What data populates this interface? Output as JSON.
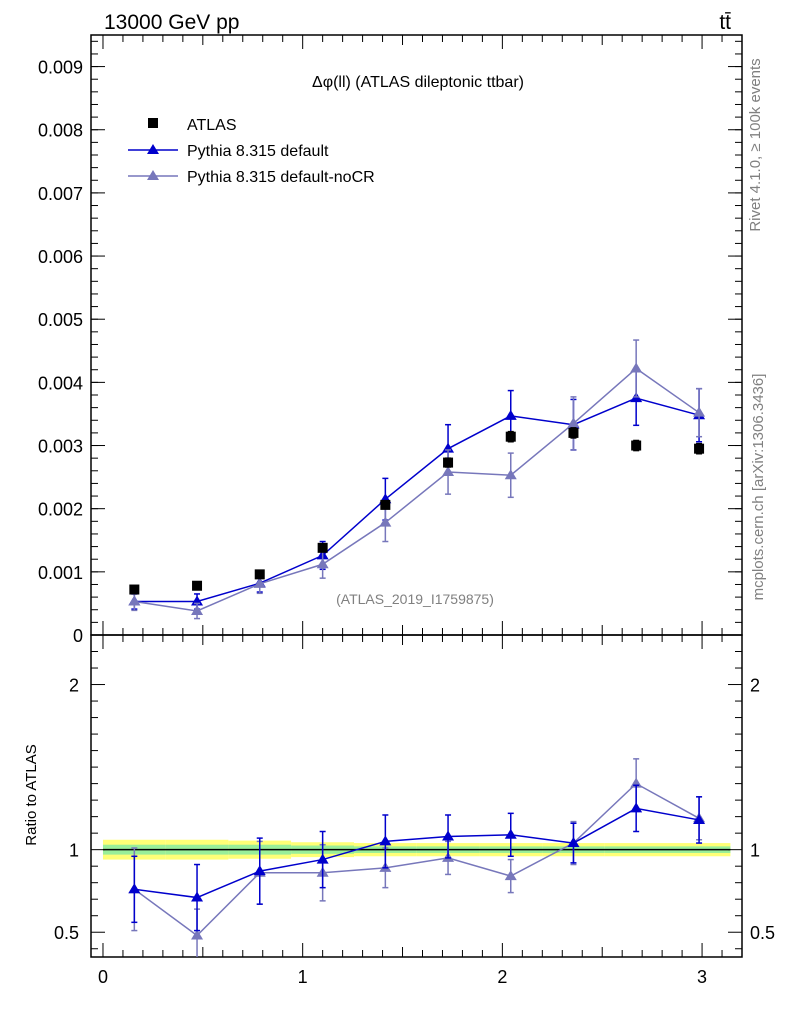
{
  "header": {
    "energy_label": "13000 GeV pp",
    "process_label": "tt̄"
  },
  "side_labels": {
    "rivet": "Rivet 4.1.0, ≥ 100k events",
    "mcplots": "mcplots.cern.ch [arXiv:1306.3436]"
  },
  "chart_data": [
    {
      "type": "scatter",
      "panel": "main",
      "title": "Δφ(ll) (ATLAS dileptonic ttbar)",
      "watermark": "(ATLAS_2019_I1759875)",
      "xlabel": "",
      "ylabel": "",
      "xlim": [
        -0.06,
        3.2
      ],
      "ylim": [
        0,
        0.0095
      ],
      "yticks": [
        "0",
        "0.001",
        "0.002",
        "0.003",
        "0.004",
        "0.005",
        "0.006",
        "0.007",
        "0.008",
        "0.009"
      ],
      "xticks": [
        "0",
        "1",
        "2",
        "3"
      ],
      "legend_position": "top-left",
      "x": [
        0.157,
        0.471,
        0.785,
        1.1,
        1.414,
        1.728,
        2.042,
        2.356,
        2.67,
        2.985
      ],
      "series": [
        {
          "name": "ATLAS",
          "color": "#000000",
          "marker": "square",
          "values": [
            0.00072,
            0.00078,
            0.00096,
            0.00138,
            0.00206,
            0.00273,
            0.00314,
            0.0032,
            0.003,
            0.00295
          ],
          "errors": [
            3e-05,
            3e-05,
            4e-05,
            5e-05,
            6e-05,
            7e-05,
            8e-05,
            8e-05,
            8e-05,
            8e-05
          ]
        },
        {
          "name": "Pythia 8.315 default",
          "color": "#0000cc",
          "marker": "triangle",
          "values": [
            0.00053,
            0.00053,
            0.00082,
            0.00126,
            0.00215,
            0.00295,
            0.00347,
            0.00333,
            0.00375,
            0.00348
          ],
          "errors": [
            0.00012,
            0.00012,
            0.00014,
            0.00022,
            0.00033,
            0.00038,
            0.0004,
            0.0004,
            0.00043,
            0.00042
          ]
        },
        {
          "name": "Pythia 8.315 default-noCR",
          "color": "#7777bb",
          "marker": "triangle",
          "values": [
            0.00053,
            0.00038,
            0.00081,
            0.00112,
            0.00178,
            0.00258,
            0.00253,
            0.00335,
            0.00422,
            0.00352
          ],
          "errors": [
            0.00014,
            0.00012,
            0.00015,
            0.00022,
            0.0003,
            0.00035,
            0.00035,
            0.00042,
            0.00045,
            0.00038
          ]
        }
      ]
    },
    {
      "type": "scatter",
      "panel": "ratio",
      "ylabel": "Ratio to ATLAS",
      "xlim": [
        -0.06,
        3.2
      ],
      "ylim": [
        0.35,
        2.3
      ],
      "yticks": [
        "0.5",
        "1",
        "2"
      ],
      "x": [
        0.157,
        0.471,
        0.785,
        1.1,
        1.414,
        1.728,
        2.042,
        2.356,
        2.67,
        2.985
      ],
      "band_edges": [
        0,
        0.314,
        0.628,
        0.942,
        1.257,
        1.571,
        1.885,
        2.199,
        2.513,
        2.827,
        3.142
      ],
      "band_inner": [
        0.03,
        0.03,
        0.03,
        0.025,
        0.02,
        0.02,
        0.02,
        0.02,
        0.02,
        0.02
      ],
      "band_outer": [
        0.06,
        0.06,
        0.055,
        0.045,
        0.04,
        0.04,
        0.04,
        0.04,
        0.04,
        0.04
      ],
      "series": [
        {
          "name": "Pythia 8.315 default",
          "color": "#0000cc",
          "values": [
            0.76,
            0.71,
            0.87,
            0.94,
            1.05,
            1.08,
            1.09,
            1.04,
            1.25,
            1.18
          ],
          "errors": [
            0.2,
            0.2,
            0.2,
            0.17,
            0.16,
            0.13,
            0.13,
            0.12,
            0.14,
            0.14
          ]
        },
        {
          "name": "Pythia 8.315 default-noCR",
          "color": "#7777bb",
          "values": [
            0.76,
            0.48,
            0.86,
            0.86,
            0.89,
            0.95,
            0.84,
            1.04,
            1.4,
            1.19
          ],
          "errors": [
            0.25,
            0.16,
            0.19,
            0.17,
            0.12,
            0.1,
            0.1,
            0.13,
            0.15,
            0.13
          ]
        }
      ]
    }
  ]
}
